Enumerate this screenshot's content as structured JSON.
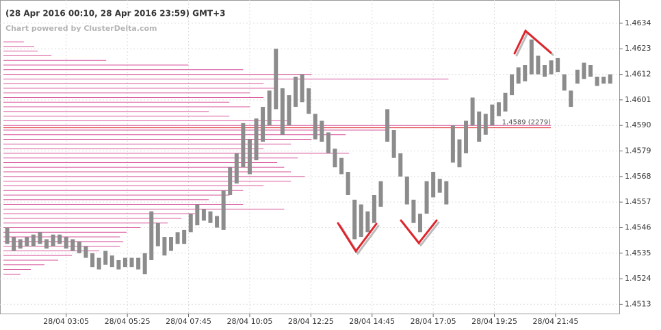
{
  "chart_data": {
    "type": "range",
    "title": "(28 Apr 2016 00:10, 28 Apr 2016 23:59) GMT+3",
    "subtitle": "Chart powered by ClusterDelta.com",
    "color": "#8c8c8c",
    "x": [
      "28/04 00:50",
      "28/04 01:05",
      "28/04 01:20",
      "28/04 01:35",
      "28/04 01:50",
      "28/04 02:05",
      "28/04 02:20",
      "28/04 02:35",
      "28/04 02:50",
      "28/04 03:05",
      "28/04 03:20",
      "28/04 03:35",
      "28/04 03:50",
      "28/04 04:05",
      "28/04 04:20",
      "28/04 04:35",
      "28/04 04:50",
      "28/04 05:05",
      "28/04 05:20",
      "28/04 05:35",
      "28/04 05:50",
      "28/04 06:05",
      "28/04 06:20",
      "28/04 06:35",
      "28/04 06:50",
      "28/04 07:05",
      "28/04 07:20",
      "28/04 07:35",
      "28/04 07:50",
      "28/04 08:05",
      "28/04 08:20",
      "28/04 08:35",
      "28/04 08:50",
      "28/04 09:05",
      "28/04 09:20",
      "28/04 09:35",
      "28/04 09:50",
      "28/04 10:05",
      "28/04 10:20",
      "28/04 10:35",
      "28/04 10:50",
      "28/04 11:05",
      "28/04 11:20",
      "28/04 11:35",
      "28/04 11:50",
      "28/04 12:05",
      "28/04 12:20",
      "28/04 12:35",
      "28/04 12:50",
      "28/04 13:05",
      "28/04 13:20",
      "28/04 13:35",
      "28/04 13:50",
      "28/04 14:05",
      "28/04 14:20",
      "28/04 14:35",
      "28/04 14:50",
      "28/04 15:05",
      "28/04 15:20",
      "28/04 15:35",
      "28/04 15:50",
      "28/04 16:05",
      "28/04 16:20",
      "28/04 16:35",
      "28/04 16:50",
      "28/04 17:05",
      "28/04 17:20",
      "28/04 17:35",
      "28/04 17:50",
      "28/04 18:05",
      "28/04 18:20",
      "28/04 18:35",
      "28/04 18:50",
      "28/04 19:05",
      "28/04 19:20",
      "28/04 19:35",
      "28/04 19:50",
      "28/04 20:05",
      "28/04 20:20",
      "28/04 20:35",
      "28/04 20:50",
      "28/04 21:05",
      "28/04 21:20",
      "28/04 21:35",
      "28/04 21:50",
      "28/04 22:05",
      "28/04 22:20",
      "28/04 22:35",
      "28/04 22:50",
      "28/04 23:05",
      "28/04 23:20",
      "28/04 23:35",
      "28/04 23:50"
    ],
    "high": [
      1.4546,
      1.4542,
      1.4541,
      1.4542,
      1.4543,
      1.4544,
      1.4541,
      1.4543,
      1.4543,
      1.4542,
      1.4541,
      1.454,
      1.4538,
      1.4535,
      1.4533,
      1.4536,
      1.4534,
      1.4532,
      1.4533,
      1.4533,
      1.4533,
      1.4535,
      1.4553,
      1.4548,
      1.4542,
      1.4542,
      1.4544,
      1.4545,
      1.4552,
      1.4556,
      1.4554,
      1.4553,
      1.4551,
      1.4562,
      1.4572,
      1.4578,
      1.4591,
      1.4584,
      1.4593,
      1.4598,
      1.4605,
      1.4623,
      1.4606,
      1.4603,
      1.4611,
      1.4612,
      1.4606,
      1.4595,
      1.4592,
      1.4587,
      1.458,
      1.4576,
      1.457,
      1.4558,
      1.4556,
      1.4553,
      1.456,
      1.4566,
      1.4597,
      1.4588,
      1.4578,
      1.4568,
      1.4558,
      1.4552,
      1.4566,
      1.457,
      1.4567,
      1.4566,
      1.459,
      1.4584,
      1.4592,
      1.4602,
      1.4596,
      1.4595,
      1.4599,
      1.46,
      1.4604,
      1.4612,
      1.4615,
      1.4616,
      1.4627,
      1.462,
      1.4616,
      1.4618,
      1.4619,
      1.4612,
      1.4605,
      1.4614,
      1.4617,
      1.4616,
      1.4611,
      1.4611,
      1.4612
    ],
    "low": [
      1.4539,
      1.4536,
      1.4537,
      1.4538,
      1.4538,
      1.4539,
      1.4537,
      1.4538,
      1.4539,
      1.4537,
      1.4536,
      1.4535,
      1.4533,
      1.4529,
      1.4528,
      1.453,
      1.4529,
      1.4528,
      1.4529,
      1.4529,
      1.4528,
      1.4526,
      1.4532,
      1.4538,
      1.4534,
      1.4536,
      1.4539,
      1.4539,
      1.4544,
      1.4547,
      1.4549,
      1.4548,
      1.4546,
      1.4545,
      1.456,
      1.4565,
      1.4572,
      1.4569,
      1.4575,
      1.4583,
      1.459,
      1.4597,
      1.4586,
      1.459,
      1.4598,
      1.46,
      1.4595,
      1.4584,
      1.4583,
      1.4578,
      1.4572,
      1.4569,
      1.456,
      1.4541,
      1.4542,
      1.4544,
      1.4548,
      1.4555,
      1.4583,
      1.4576,
      1.4568,
      1.4556,
      1.4548,
      1.4544,
      1.4552,
      1.4559,
      1.4561,
      1.4556,
      1.4574,
      1.4572,
      1.4578,
      1.459,
      1.4583,
      1.4586,
      1.459,
      1.4594,
      1.4596,
      1.4603,
      1.4608,
      1.4609,
      1.4612,
      1.4612,
      1.4611,
      1.4612,
      1.4613,
      1.4605,
      1.4598,
      1.4608,
      1.461,
      1.4611,
      1.4607,
      1.4608,
      1.4608
    ],
    "xlim": [
      "28/04 00:10",
      "28/04 23:59"
    ],
    "xticks": [
      "28/04 03:05",
      "28/04 05:25",
      "28/04 07:45",
      "28/04 10:05",
      "28/04 12:25",
      "28/04 14:45",
      "28/04 17:05",
      "28/04 19:25",
      "28/04 21:45"
    ],
    "ylim": [
      1.4509,
      1.4644
    ],
    "yticks": [
      1.4513,
      1.4524,
      1.4535,
      1.4546,
      1.4557,
      1.4568,
      1.4579,
      {
        "value": 1.459,
        "label": "1.4590"
      },
      1.4601,
      1.4612,
      1.4623,
      1.4634
    ],
    "grid": true,
    "profile": {
      "color": "#d6539a",
      "levels": [
        1.4626,
        1.4624,
        1.4622,
        1.462,
        1.4618,
        1.4616,
        1.4614,
        1.4612,
        1.461,
        1.4608,
        1.4606,
        1.4604,
        1.4602,
        1.46,
        1.4598,
        1.4596,
        1.4594,
        1.4592,
        1.459,
        1.4588,
        1.4586,
        1.4584,
        1.4582,
        1.458,
        1.4578,
        1.4576,
        1.4574,
        1.4572,
        1.457,
        1.4568,
        1.4566,
        1.4564,
        1.4562,
        1.456,
        1.4558,
        1.4556,
        1.4554,
        1.4552,
        1.455,
        1.4548,
        1.4546,
        1.4544,
        1.4542,
        1.454,
        1.4538,
        1.4536,
        1.4534,
        1.4532,
        1.453,
        1.4528,
        1.4526
      ],
      "volumes": [
        85,
        128,
        143,
        200,
        428,
        770,
        998,
        1283,
        1853,
        1083,
        1140,
        1026,
        1083,
        941,
        1026,
        855,
        941,
        1197,
        2279,
        1596,
        1425,
        1283,
        1197,
        1083,
        1439,
        1226,
        1140,
        1169,
        1197,
        1254,
        1197,
        1083,
        998,
        941,
        855,
        998,
        1169,
        798,
        741,
        684,
        570,
        513,
        485,
        499,
        485,
        399,
        285,
        228,
        171,
        114,
        71
      ]
    },
    "annotation": {
      "text": "1.4589 (2279)",
      "price": 1.4589,
      "volume": 2279,
      "color": "#e0242c"
    }
  }
}
